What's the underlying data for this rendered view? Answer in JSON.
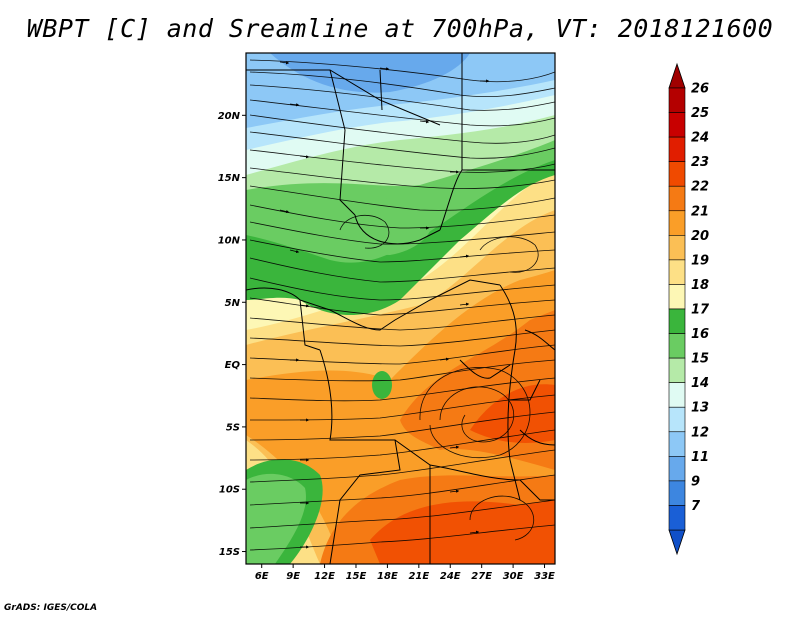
{
  "title": "WBPT [C] and Sreamline at 700hPa, VT: 2018121600",
  "credit": "GrADS: IGES/COLA",
  "map": {
    "variable": "WBPT [C]",
    "overlay": "streamlines",
    "level": "700hPa",
    "valid_time": "2018121600",
    "lon_range": [
      4.5,
      34
    ],
    "lat_range": [
      -16,
      25
    ],
    "x_ticks": [
      {
        "value": 6,
        "label": "6E"
      },
      {
        "value": 9,
        "label": "9E"
      },
      {
        "value": 12,
        "label": "12E"
      },
      {
        "value": 15,
        "label": "15E"
      },
      {
        "value": 18,
        "label": "18E"
      },
      {
        "value": 21,
        "label": "21E"
      },
      {
        "value": 24,
        "label": "24E"
      },
      {
        "value": 27,
        "label": "27E"
      },
      {
        "value": 30,
        "label": "30E"
      },
      {
        "value": 33,
        "label": "33E"
      }
    ],
    "y_ticks": [
      {
        "value": 20,
        "label": "20N"
      },
      {
        "value": 15,
        "label": "15N"
      },
      {
        "value": 10,
        "label": "10N"
      },
      {
        "value": 5,
        "label": "5N"
      },
      {
        "value": 0,
        "label": "EQ"
      },
      {
        "value": -5,
        "label": "5S"
      },
      {
        "value": -10,
        "label": "10S"
      },
      {
        "value": -15,
        "label": "15S"
      }
    ]
  },
  "colorbar": {
    "levels": [
      {
        "label": "26",
        "color": "#b40000"
      },
      {
        "label": "25",
        "color": "#c80000"
      },
      {
        "label": "24",
        "color": "#e11e00"
      },
      {
        "label": "23",
        "color": "#f04a00"
      },
      {
        "label": "22",
        "color": "#f57a14"
      },
      {
        "label": "21",
        "color": "#fa9e28"
      },
      {
        "label": "20",
        "color": "#fbbf55"
      },
      {
        "label": "19",
        "color": "#fde086"
      },
      {
        "label": "18",
        "color": "#fdf7b5"
      },
      {
        "label": "17",
        "color": "#3ab53c"
      },
      {
        "label": "16",
        "color": "#6acc62"
      },
      {
        "label": "15",
        "color": "#b5eaa8"
      },
      {
        "label": "14",
        "color": "#e0fbf3"
      },
      {
        "label": "13",
        "color": "#b7e5fb"
      },
      {
        "label": "12",
        "color": "#8dc8f6"
      },
      {
        "label": "11",
        "color": "#67a9ec"
      },
      {
        "label": "9",
        "color": "#3d86e0"
      },
      {
        "label": "7",
        "color": "#1a5fd6"
      }
    ],
    "top_arrow_color": "#a00000",
    "bottom_arrow_color": "#1050c8"
  }
}
